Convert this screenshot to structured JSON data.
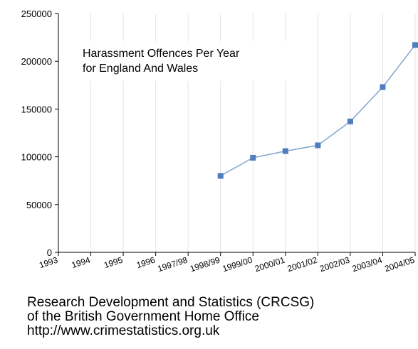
{
  "chart_data": {
    "type": "line",
    "title_lines": [
      "Harassment Offences Per Year",
      "for England And Wales"
    ],
    "xlabel": "",
    "ylabel": "",
    "categories": [
      "1993",
      "1994",
      "1995",
      "1996",
      "1997/98",
      "1998/99",
      "1999/00",
      "2000/01",
      "2001/02",
      "2002/03",
      "2003/04",
      "2004/05"
    ],
    "series": [
      {
        "values": [
          null,
          null,
          null,
          null,
          null,
          80000,
          99000,
          106000,
          112000,
          137000,
          173000,
          217000
        ],
        "color": "#8aaad0",
        "marker_color": "#4f7dbf"
      }
    ],
    "yticks": [
      "0",
      "50000",
      "100000",
      "150000",
      "200000",
      "250000"
    ],
    "ylim": [
      0,
      250000
    ],
    "grid": "vertical"
  },
  "source": {
    "line1": "Research Development and Statistics (CRCSG)",
    "line2": "of the British Government Home Office",
    "line3": "http://www.crimestatistics.org.uk"
  }
}
